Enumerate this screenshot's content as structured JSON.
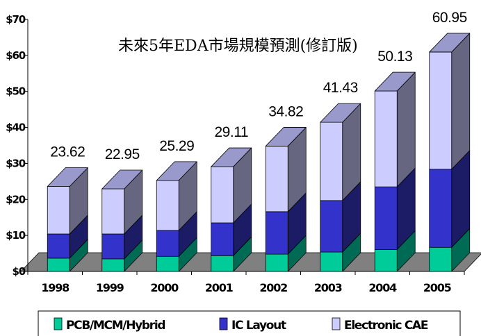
{
  "chart_data": {
    "type": "bar",
    "stacked": true,
    "three_d": true,
    "title": "未來5年EDA市場規模預測(修訂版)",
    "xlabel": "",
    "ylabel": "",
    "categories": [
      "1998",
      "1999",
      "2000",
      "2001",
      "2002",
      "2003",
      "2004",
      "2005"
    ],
    "series": [
      {
        "name": "PCB/MCM/Hybrid",
        "color": "#00CC99",
        "side_color": "#006B55",
        "values": [
          3.7,
          3.5,
          4.2,
          4.4,
          4.8,
          5.4,
          6.1,
          6.7
        ]
      },
      {
        "name": "IC Layout",
        "color": "#3333CC",
        "side_color": "#1C1C66",
        "values": [
          6.7,
          6.9,
          7.2,
          9.1,
          11.8,
          14.3,
          17.4,
          21.7
        ]
      },
      {
        "name": "Electronic CAE",
        "color": "#CCCCFF",
        "side_color": "#666680",
        "top_color": "#9999CC",
        "values": [
          13.22,
          12.55,
          13.89,
          15.61,
          18.22,
          21.73,
          26.63,
          32.55
        ]
      }
    ],
    "totals": [
      "23.62",
      "22.95",
      "25.29",
      "29.11",
      "34.82",
      "41.43",
      "50.13",
      "60.95"
    ],
    "yticks": [
      "$0",
      "$10",
      "$20",
      "$30",
      "$40",
      "$50",
      "$60",
      "$70"
    ],
    "ylim": [
      0,
      70
    ],
    "grid": false,
    "floor_color": "#808080",
    "legend_position": "bottom"
  }
}
